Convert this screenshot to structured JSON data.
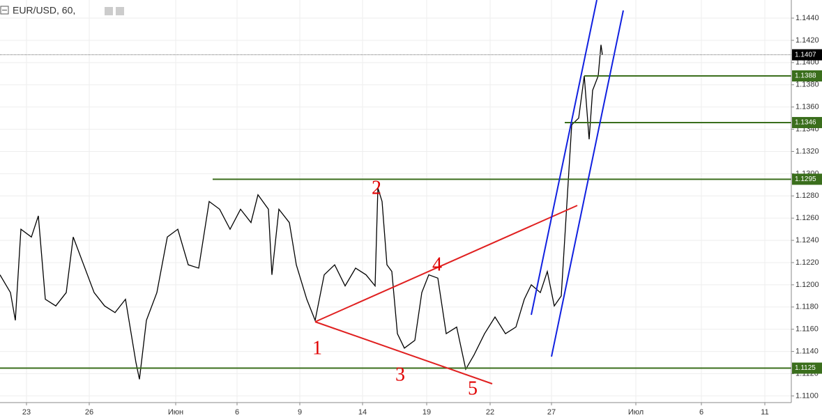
{
  "chart_data": {
    "type": "line",
    "title": "EUR/USD, 60,",
    "color": "#000000",
    "x": [
      0,
      12,
      17.6,
      24,
      36,
      44,
      52,
      64,
      76,
      84,
      96,
      108,
      120,
      132,
      144,
      156,
      160,
      168,
      180,
      192,
      204,
      216,
      228,
      240,
      252,
      264,
      276,
      288,
      296,
      308,
      312,
      320,
      332,
      340,
      352,
      361.6,
      372,
      384,
      396,
      408,
      420,
      430.4,
      433.6,
      438.4,
      444,
      449.6,
      456,
      464,
      476,
      484,
      492,
      502.4,
      512,
      524,
      534.4,
      544,
      556,
      568,
      580,
      592,
      601.6,
      609.6,
      620,
      628,
      636,
      644,
      649.6,
      656,
      664,
      670.4,
      676,
      680,
      686.4,
      689.6,
      691.2
    ],
    "values": [
      1.1209,
      1.1193,
      1.1168,
      1.125,
      1.1243,
      1.1262,
      1.1187,
      1.1181,
      1.1193,
      1.1243,
      1.1218,
      1.1193,
      1.1181,
      1.1175,
      1.1187,
      1.113,
      1.1115,
      1.1168,
      1.1193,
      1.1243,
      1.125,
      1.1218,
      1.1215,
      1.1275,
      1.1268,
      1.125,
      1.1268,
      1.1256,
      1.1281,
      1.1268,
      1.1209,
      1.1268,
      1.1256,
      1.1218,
      1.1187,
      1.1168,
      1.1209,
      1.1218,
      1.1199,
      1.1215,
      1.1209,
      1.1199,
      1.1287,
      1.1275,
      1.1218,
      1.1212,
      1.1156,
      1.1143,
      1.115,
      1.1193,
      1.1209,
      1.1206,
      1.1156,
      1.1162,
      1.1124,
      1.1137,
      1.1156,
      1.1171,
      1.1156,
      1.1162,
      1.1187,
      1.12,
      1.1193,
      1.1212,
      1.1181,
      1.119,
      1.1262,
      1.1344,
      1.135,
      1.1388,
      1.1331,
      1.1375,
      1.1388,
      1.1416,
      1.1407
    ],
    "xlim": [
      0,
      908
    ],
    "xticks": [
      {
        "value": 30.4,
        "label": "23"
      },
      {
        "value": 102.4,
        "label": "26"
      },
      {
        "value": 201.6,
        "label": "Июн"
      },
      {
        "value": 272,
        "label": "6"
      },
      {
        "value": 344,
        "label": "9"
      },
      {
        "value": 416,
        "label": "14"
      },
      {
        "value": 489.6,
        "label": "19"
      },
      {
        "value": 562.4,
        "label": "22"
      },
      {
        "value": 632.8,
        "label": "27"
      },
      {
        "value": 729.6,
        "label": "Июл"
      },
      {
        "value": 804.8,
        "label": "6"
      },
      {
        "value": 877.6,
        "label": "11"
      }
    ],
    "ylim": [
      1.1094,
      1.14563
    ],
    "yticks": [
      {
        "value": 1.11,
        "label": "1.1100"
      },
      {
        "value": 1.112,
        "label": "1.1120"
      },
      {
        "value": 1.114,
        "label": "1.1140"
      },
      {
        "value": 1.116,
        "label": "1.1160"
      },
      {
        "value": 1.118,
        "label": "1.1180"
      },
      {
        "value": 1.12,
        "label": "1.1200"
      },
      {
        "value": 1.122,
        "label": "1.1220"
      },
      {
        "value": 1.124,
        "label": "1.1240"
      },
      {
        "value": 1.126,
        "label": "1.1260"
      },
      {
        "value": 1.128,
        "label": "1.1280"
      },
      {
        "value": 1.13,
        "label": "1.1300"
      },
      {
        "value": 1.132,
        "label": "1.1320"
      },
      {
        "value": 1.134,
        "label": "1.1340"
      },
      {
        "value": 1.136,
        "label": "1.1360"
      },
      {
        "value": 1.138,
        "label": "1.1380"
      },
      {
        "value": 1.14,
        "label": "1.1400"
      },
      {
        "value": 1.142,
        "label": "1.1420"
      },
      {
        "value": 1.144,
        "label": "1.1440"
      }
    ],
    "grid": true,
    "levels": [
      {
        "value": 1.1388,
        "x_start": 670.4,
        "color": "#3a6e1c"
      },
      {
        "value": 1.1346,
        "x_start": 648,
        "color": "#3a6e1c"
      },
      {
        "value": 1.1295,
        "x_start": 244,
        "color": "#3a6e1c"
      },
      {
        "value": 1.1125,
        "x_start": 0,
        "color": "#3a6e1c"
      }
    ],
    "current_price": 1.1407,
    "wave_labels": [
      "1",
      "2",
      "3",
      "4",
      "5"
    ]
  }
}
